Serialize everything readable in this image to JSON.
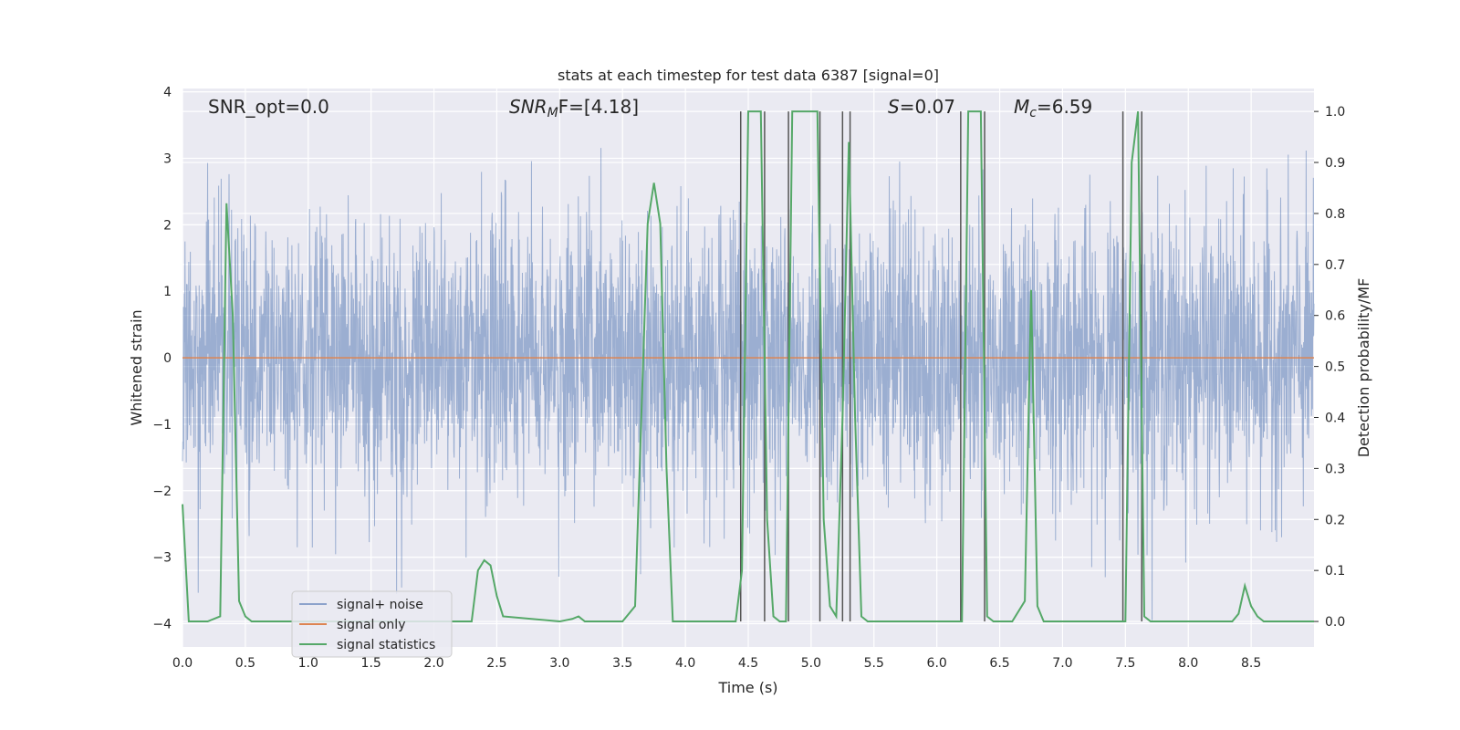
{
  "chart_data": {
    "type": "line",
    "title": "stats at each timestep for test data 6387 [signal=0]",
    "xlabel": "Time (s)",
    "ylabel": "Whitened strain",
    "ylabel_right": "Detection probability/MF",
    "xlim": [
      0.0,
      9.0
    ],
    "ylim_left": [
      -4.35,
      4.05
    ],
    "ylim_right": [
      -0.05,
      1.045
    ],
    "xticks": [
      "0.0",
      "0.5",
      "1.0",
      "1.5",
      "2.0",
      "2.5",
      "3.0",
      "3.5",
      "4.0",
      "4.5",
      "5.0",
      "5.5",
      "6.0",
      "6.5",
      "7.0",
      "7.5",
      "8.0",
      "8.5"
    ],
    "yticks_left": [
      "4",
      "3",
      "2",
      "1",
      "0",
      "−1",
      "−2",
      "−3",
      "−4"
    ],
    "yticks_right": [
      "1.0",
      "0.9",
      "0.8",
      "0.7",
      "0.6",
      "0.5",
      "0.4",
      "0.3",
      "0.2",
      "0.1",
      "0.0"
    ],
    "grid": true,
    "legend_position": "lower-left",
    "annotations": {
      "snr_opt": "SNR_opt=0.0",
      "snr_mf_main": "SNR",
      "snr_mf_sub": "M",
      "snr_mf_tail": "F=[4.18]",
      "s_main": "S",
      "s_tail": "=0.07",
      "mc_main": "M",
      "mc_sub": "c",
      "mc_tail": "=6.59"
    },
    "series": [
      {
        "name": "signal+ noise",
        "color": "#4c72b0",
        "description_values": "whitened noise, approx Gaussian, peaks near ±3.7",
        "envelope_max": 3.7,
        "envelope_min": -4.0
      },
      {
        "name": "signal only",
        "color": "#dd8452",
        "x": [
          0.0,
          9.0
        ],
        "y": [
          0.0,
          0.0
        ]
      },
      {
        "name": "signal statistics",
        "color": "#55a868",
        "x": [
          0.0,
          0.05,
          0.1,
          0.2,
          0.3,
          0.35,
          0.4,
          0.45,
          0.5,
          0.55,
          0.6,
          2.3,
          2.35,
          2.4,
          2.45,
          2.5,
          2.55,
          3.0,
          3.1,
          3.15,
          3.2,
          3.5,
          3.6,
          3.7,
          3.75,
          3.8,
          3.85,
          3.9,
          4.0,
          4.4,
          4.45,
          4.5,
          4.6,
          4.65,
          4.7,
          4.75,
          4.8,
          4.85,
          4.9,
          5.0,
          5.05,
          5.1,
          5.15,
          5.2,
          5.25,
          5.3,
          5.35,
          5.4,
          5.45,
          5.5,
          6.2,
          6.25,
          6.3,
          6.35,
          6.4,
          6.45,
          6.6,
          6.7,
          6.75,
          6.8,
          6.85,
          7.5,
          7.55,
          7.6,
          7.65,
          7.7,
          8.3,
          8.35,
          8.4,
          8.45,
          8.5,
          8.55,
          8.6,
          8.7,
          9.0
        ],
        "y": [
          0.23,
          0.0,
          0.0,
          0.0,
          0.01,
          0.82,
          0.6,
          0.04,
          0.01,
          0.0,
          0.0,
          0.0,
          0.1,
          0.12,
          0.11,
          0.05,
          0.01,
          0.0,
          0.005,
          0.01,
          0.0,
          0.0,
          0.03,
          0.78,
          0.86,
          0.78,
          0.3,
          0.0,
          0.0,
          0.0,
          0.1,
          1.0,
          1.0,
          0.2,
          0.01,
          0.0,
          0.0,
          1.0,
          1.0,
          1.0,
          1.0,
          0.2,
          0.03,
          0.01,
          0.4,
          0.94,
          0.4,
          0.01,
          0.0,
          0.0,
          0.0,
          1.0,
          1.0,
          1.0,
          0.01,
          0.0,
          0.0,
          0.04,
          0.65,
          0.03,
          0.0,
          0.0,
          0.9,
          1.0,
          0.01,
          0.0,
          0.0,
          0.0,
          0.015,
          0.07,
          0.03,
          0.01,
          0.0,
          0.0,
          0.0
        ]
      }
    ],
    "vertical_lines_x": [
      4.44,
      4.63,
      4.82,
      5.07,
      5.25,
      5.31,
      6.19,
      6.38,
      7.48,
      7.63
    ]
  }
}
